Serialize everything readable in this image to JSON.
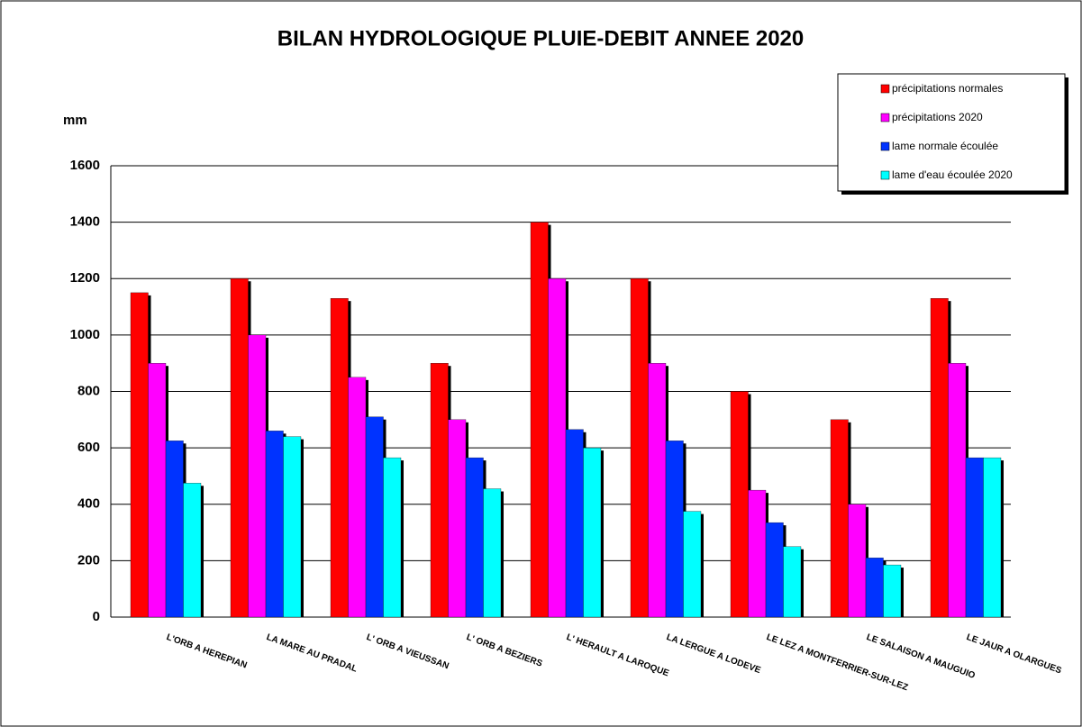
{
  "chart_data": {
    "type": "bar",
    "title": "BILAN HYDROLOGIQUE PLUIE-DEBIT ANNEE 2020",
    "y_label": "mm",
    "categories": [
      "L'ORB A HEREPIAN",
      "LA MARE AU PRADAL",
      "L' ORB A VIEUSSAN",
      "L' ORB A BEZIERS",
      "L' HERAULT A LAROQUE",
      "LA LERGUE A LODEVE",
      "LE LEZ A MONTFERRIER-SUR-LEZ",
      "LE SALAISON A MAUGUIO",
      "LE JAUR A OLARGUES"
    ],
    "series": [
      {
        "name": "précipitations normales",
        "color": "#ff0000",
        "values": [
          1150,
          1200,
          1130,
          900,
          1400,
          1200,
          800,
          700,
          1130
        ]
      },
      {
        "name": "précipitations 2020",
        "color": "#ff00ff",
        "values": [
          900,
          1000,
          850,
          700,
          1200,
          900,
          450,
          400,
          900
        ]
      },
      {
        "name": "lame normale écoulée",
        "color": "#0033ff",
        "values": [
          625,
          660,
          710,
          565,
          665,
          625,
          335,
          210,
          565
        ]
      },
      {
        "name": "lame d'eau écoulée 2020",
        "color": "#00ffff",
        "values": [
          475,
          640,
          565,
          455,
          600,
          375,
          250,
          185,
          565
        ]
      }
    ],
    "ylim": [
      0,
      1600
    ],
    "yticks": [
      0,
      200,
      400,
      600,
      800,
      1000,
      1200,
      1400,
      1600
    ],
    "grid": true,
    "legend": "top-right"
  }
}
